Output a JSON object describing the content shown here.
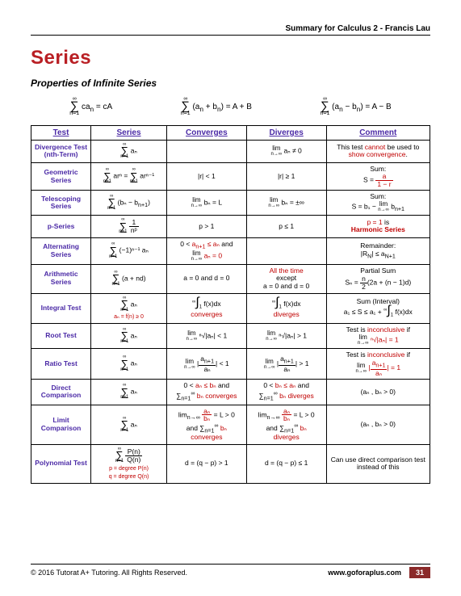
{
  "header": {
    "text": "Summary for Calculus 2 - Francis Lau"
  },
  "title": "Series",
  "subtitle": "Properties of Infinite Series",
  "properties": [
    "∑ caₙ = cA",
    "∑ (aₙ + bₙ) = A + B",
    "∑ (aₙ − bₙ) = A − B"
  ],
  "columns": [
    "Test",
    "Series",
    "Converges",
    "Diverges",
    "Comment"
  ],
  "rows": [
    {
      "name": "Divergence Test (nth-Term)",
      "series": "∑ aₙ",
      "converges": "",
      "diverges": "lim aₙ ≠ 0",
      "comment_html": "This test <span class='red'>cannot</span> be used to <span class='red'>show convergence</span>."
    },
    {
      "name": "Geometric Series",
      "series_html": "<span class='mini'><span class='top'>∞</span><span class='sym'>∑</span><span class='bot'>n=1</span></span> arⁿ = <span class='mini'><span class='top'>∞</span><span class='sym'>∑</span><span class='bot'>n=1</span></span> arⁿ⁻¹",
      "converges": "|r| < 1",
      "diverges": "|r| ≥ 1",
      "comment_html": "Sum:<br>S = <span class='frac red'><span class='num'>a</span><span class='den'>1 − r</span></span>"
    },
    {
      "name": "Telescoping Series",
      "series_html": "<span class='mini'><span class='top'>∞</span><span class='sym'>∑</span><span class='bot'>n=1</span></span> (bₙ − b<sub>n+1</sub>)",
      "converges_html": "<span class='lim'>lim<span class='under'>n→∞</span></span> bₙ = L",
      "diverges_html": "<span class='lim'>lim<span class='under'>n→∞</span></span> bₙ = ±∞",
      "comment_html": "Sum:<br>S = b₁ − <span class='lim'>lim<span class='under'>n→∞</span></span> b<sub>n+1</sub>"
    },
    {
      "name": "p-Series",
      "series_html": "<span class='mini'><span class='top'>∞</span><span class='sym'>∑</span><span class='bot'>n=1</span></span> <span class='frac'><span class='num'>1</span><span class='den'>nᵖ</span></span>",
      "converges": "p > 1",
      "diverges": "p ≤ 1",
      "comment_html": "<span class='red'>p = 1</span> is<br><span class='red'><b>Harmonic Series</b></span>"
    },
    {
      "name": "Alternating Series",
      "series_html": "<span class='mini'><span class='top'>∞</span><span class='sym'>∑</span><span class='bot'>n=1</span></span> (−1)ⁿ⁻¹ aₙ",
      "converges_html": "0 < <span class='red'>a<sub>n+1</sub> ≤ aₙ</span> and<br><span class='lim'>lim<span class='under'>n→∞</span></span> <span class='red'>aₙ = 0</span>",
      "diverges": "",
      "comment_html": "Remainder:<br>|R<sub>N</sub>| ≤ a<sub>N+1</sub>"
    },
    {
      "name": "Arithmetic Series",
      "series_html": "<span class='mini'><span class='top'>∞</span><span class='sym'>∑</span><span class='bot'>n=1</span></span> (a + nd)",
      "converges": "a = 0 and d = 0",
      "diverges_html": "<span class='red'>All the time</span><br>except<br>a = 0 and d = 0",
      "comment_html": "Partial Sum<br>Sₙ = <span class='frac'><span class='num'>n</span><span class='den'>2</span></span>(2a + (n − 1)d)"
    },
    {
      "name": "Integral Test",
      "series_html": "<span class='mini'><span class='top'>∞</span><span class='sym'>∑</span><span class='bot'>n=1</span></span> aₙ<br><span class='red small6'>aₙ = f(n) ≥ 0</span>",
      "converges_html": "<span class='integral'><sup class='intb'>∞</sup><span class='intsym'>∫</span><sub class='intb'>1</sub></span> f(x)dx <br><span class='red'>converges</span>",
      "diverges_html": "<span class='integral'><sup class='intb'>∞</sup><span class='intsym'>∫</span><sub class='intb'>1</sub></span> f(x)dx <br><span class='red'>diverges</span>",
      "comment_html": "Sum (Interval)<br>a₁ ≤ S ≤ a₁ + <span class='integral'><sup class='intb'>∞</sup><span class='intsym'>∫</span><sub class='intb'>1</sub></span> f(x)dx"
    },
    {
      "name": "Root Test",
      "series_html": "<span class='mini'><span class='top'>∞</span><span class='sym'>∑</span><span class='bot'>n=1</span></span> aₙ",
      "converges_html": "<span class='lim'>lim<span class='under'>n→∞</span></span> ⁿ√|aₙ| < 1",
      "diverges_html": "<span class='lim'>lim<span class='under'>n→∞</span></span> ⁿ√|aₙ| > 1",
      "comment_html": "Test is <span class='red'>inconclusive</span> if<br><span class='lim'>lim<span class='under'>n→∞</span></span> <span class='red'>ⁿ√|aₙ| = 1</span>"
    },
    {
      "name": "Ratio Test",
      "series_html": "<span class='mini'><span class='top'>∞</span><span class='sym'>∑</span><span class='bot'>n=1</span></span> aₙ",
      "converges_html": "<span class='lim'>lim<span class='under'>n→∞</span></span> |<span class='frac'><span class='num'>a<sub>n+1</sub></span><span class='den'>aₙ</span></span>| < 1",
      "diverges_html": "<span class='lim'>lim<span class='under'>n→∞</span></span> |<span class='frac'><span class='num'>a<sub>n+1</sub></span><span class='den'>aₙ</span></span>| > 1",
      "comment_html": "Test is <span class='red'>inconclusive</span> if<br><span class='lim'>lim<span class='under'>n→∞</span></span> <span class='red'>|<span class='frac'><span class='num'>a<sub>n+1</sub></span><span class='den'>aₙ</span></span>| = 1</span>"
    },
    {
      "name": "Direct Comparison",
      "series_html": "<span class='mini'><span class='top'>∞</span><span class='sym'>∑</span><span class='bot'>n=1</span></span> aₙ",
      "converges_html": "0 < <span class='red'>aₙ ≤ bₙ</span> and<br>∑<sub>n=1</sub><sup>∞</sup> <span class='red'>bₙ converges</span>",
      "diverges_html": "0 < <span class='red'>bₙ ≤ aₙ</span> and<br>∑<sub>n=1</sub><sup>∞</sup> <span class='red'>bₙ diverges</span>",
      "comment": "(aₙ , bₙ > 0)"
    },
    {
      "name": "Limit Comparison",
      "series_html": "<span class='mini'><span class='top'>∞</span><span class='sym'>∑</span><span class='bot'>n=1</span></span> aₙ",
      "converges_html": "lim<sub>n→∞</sub> <span class='frac red'><span class='num'>aₙ</span><span class='den'>bₙ</span></span> = L > 0<br>and ∑<sub>n=1</sub><sup>∞</sup> <span class='red'>bₙ</span><br><span class='red'>converges</span>",
      "diverges_html": "lim<sub>n→∞</sub> <span class='frac red'><span class='num'>aₙ</span><span class='den'>bₙ</span></span> = L > 0<br>and ∑<sub>n=1</sub><sup>∞</sup> <span class='red'>bₙ</span><br><span class='red'>diverges</span>",
      "comment": "(aₙ , bₙ > 0)"
    },
    {
      "name": "Polynomial Test",
      "series_html": "<span class='mini'><span class='top'>∞</span><span class='sym'>∑</span><span class='bot'>n=1</span></span> <span class='frac'><span class='num'>P(n)</span><span class='den'>Q(n)</span></span><br><span class='red small6'>p = degree P(n)<br>q = degree Q(n)</span>",
      "converges": "d = (q − p) > 1",
      "diverges": "d = (q − p) ≤ 1",
      "comment": "Can use direct comparison test instead of this"
    }
  ],
  "footer": {
    "left": "© 2016 Tutorat A+ Tutoring. All Rights Reserved.",
    "url": "www.goforaplus.com",
    "page": "31"
  },
  "style": {
    "accent": "#b91f24",
    "header_color": "#4b2aa6",
    "red": "#c00000",
    "page_bg": "#ffffff",
    "footer_bg": "#8b2a2a"
  }
}
